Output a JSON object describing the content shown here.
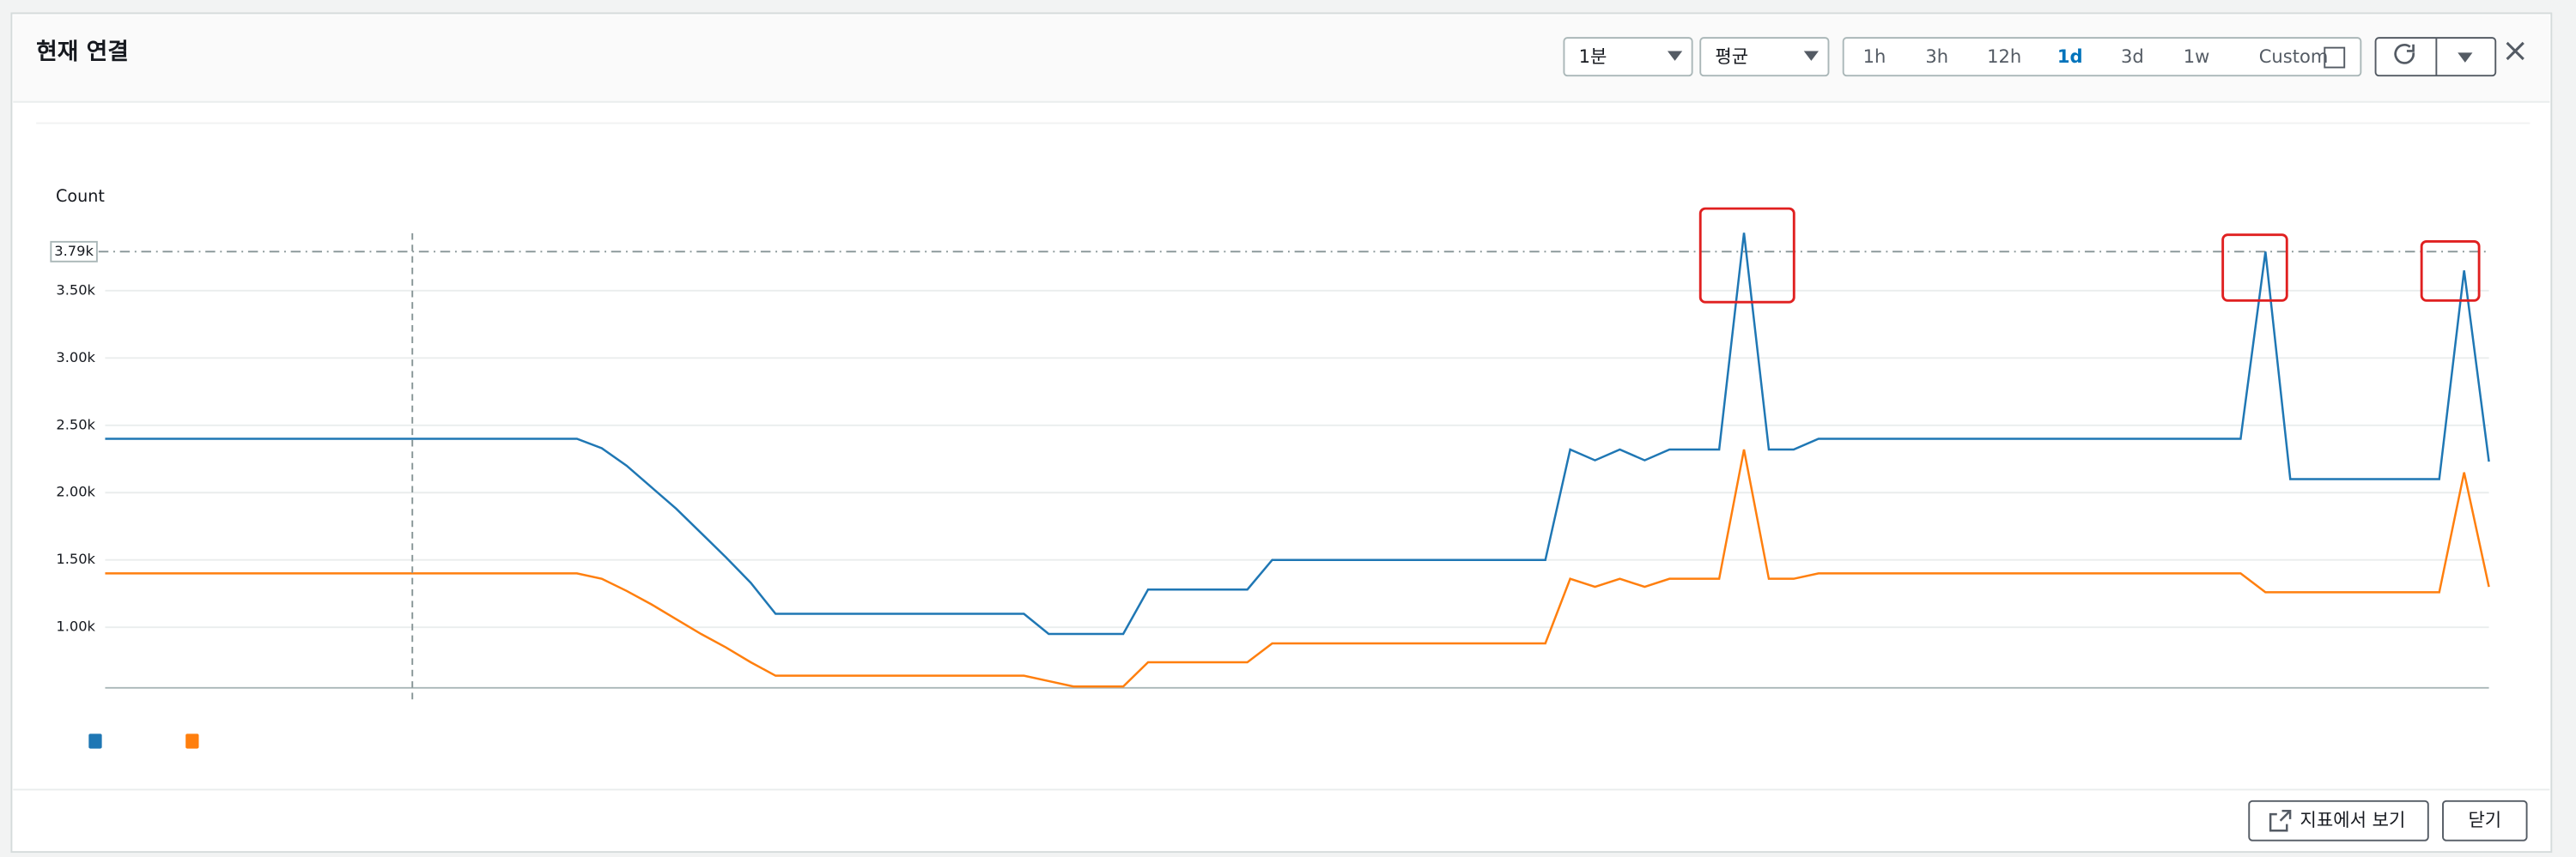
{
  "ui": {
    "title": "현재 연결",
    "period": "1분",
    "stat": "평균",
    "ranges": [
      "1h",
      "3h",
      "12h",
      "1d",
      "3d",
      "1w",
      "Custom"
    ],
    "active_range": 3,
    "view_in_metrics": "지표에서 보기",
    "close": "닫기"
  },
  "chart_data": {
    "type": "line",
    "y_label": "Count",
    "categories": [
      null,
      null,
      null,
      null,
      null,
      null,
      null,
      null,
      null,
      null,
      null,
      null,
      null,
      null,
      null,
      null,
      null,
      null,
      null,
      null,
      null,
      null,
      null,
      null,
      null,
      null,
      null,
      null,
      null,
      null,
      null,
      null,
      null,
      null,
      null,
      null,
      null,
      null,
      null,
      null,
      null,
      null,
      null,
      null,
      null,
      null,
      null,
      null,
      null,
      null,
      null,
      null,
      null,
      null,
      null,
      null,
      null,
      null,
      null,
      null,
      null,
      null,
      null,
      null,
      null,
      null,
      null,
      null,
      null,
      null,
      null,
      null,
      null,
      null,
      null,
      null,
      null,
      null,
      null,
      null,
      null,
      null,
      null,
      null,
      null,
      null,
      null,
      null,
      null,
      null,
      null,
      null,
      null,
      null,
      null,
      null,
      null
    ],
    "series": [
      {
        "color": "#1f77b4",
        "values": [
          2400,
          2400,
          2400,
          2400,
          2400,
          2400,
          2400,
          2400,
          2400,
          2400,
          2400,
          2400,
          2400,
          2400,
          2400,
          2400,
          2400,
          2400,
          2400,
          2400,
          2330,
          2200,
          2040,
          1880,
          1700,
          1520,
          1330,
          1100,
          1100,
          1100,
          1100,
          1100,
          1100,
          1100,
          1100,
          1100,
          1100,
          1100,
          950,
          950,
          950,
          950,
          1280,
          1280,
          1280,
          1280,
          1280,
          1500,
          1500,
          1500,
          1500,
          1500,
          1500,
          1500,
          1500,
          1500,
          1500,
          1500,
          1500,
          2320,
          2240,
          2320,
          2240,
          2320,
          2320,
          2320,
          3930,
          2320,
          2320,
          2400,
          2400,
          2400,
          2400,
          2400,
          2400,
          2400,
          2400,
          2400,
          2400,
          2400,
          2400,
          2400,
          2400,
          2400,
          2400,
          2400,
          2400,
          3790,
          2100,
          2100,
          2100,
          2100,
          2100,
          2100,
          2100,
          3650,
          2230
        ]
      },
      {
        "color": "#ff7f0e",
        "values": [
          1400,
          1400,
          1400,
          1400,
          1400,
          1400,
          1400,
          1400,
          1400,
          1400,
          1400,
          1400,
          1400,
          1400,
          1400,
          1400,
          1400,
          1400,
          1400,
          1400,
          1360,
          1270,
          1170,
          1060,
          950,
          850,
          740,
          640,
          640,
          640,
          640,
          640,
          640,
          640,
          640,
          640,
          640,
          640,
          600,
          560,
          560,
          560,
          740,
          740,
          740,
          740,
          740,
          880,
          880,
          880,
          880,
          880,
          880,
          880,
          880,
          880,
          880,
          880,
          880,
          1360,
          1300,
          1360,
          1300,
          1360,
          1360,
          1360,
          2320,
          1360,
          1360,
          1400,
          1400,
          1400,
          1400,
          1400,
          1400,
          1400,
          1400,
          1400,
          1400,
          1400,
          1400,
          1400,
          1400,
          1400,
          1400,
          1400,
          1400,
          1260,
          1260,
          1260,
          1260,
          1260,
          1260,
          1260,
          1260,
          2150,
          1300
        ]
      }
    ],
    "ylim": [
      550,
      4750
    ],
    "yticks": [
      {
        "value": 1000,
        "label": "1.00k"
      },
      {
        "value": 1500,
        "label": "1.50k"
      },
      {
        "value": 2000,
        "label": "2.00k"
      },
      {
        "value": 2500,
        "label": "2.50k"
      },
      {
        "value": 3000,
        "label": "3.00k"
      },
      {
        "value": 3500,
        "label": "3.50k"
      }
    ],
    "reference_line": {
      "value": 3790,
      "label": "3.79k"
    },
    "grid": true
  }
}
